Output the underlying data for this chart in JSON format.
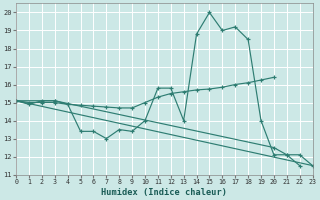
{
  "xlabel": "Humidex (Indice chaleur)",
  "bg_color": "#cce8e6",
  "grid_color": "#b8d8d6",
  "line_color": "#2e7d72",
  "xlim": [
    0,
    23
  ],
  "ylim": [
    11,
    20.5
  ],
  "yticks": [
    11,
    12,
    13,
    14,
    15,
    16,
    17,
    18,
    19,
    20
  ],
  "xticks": [
    0,
    1,
    2,
    3,
    4,
    5,
    6,
    7,
    8,
    9,
    10,
    11,
    12,
    13,
    14,
    15,
    16,
    17,
    18,
    19,
    20,
    21,
    22,
    23
  ],
  "series": [
    {
      "x": [
        0,
        1,
        2,
        3,
        4,
        5,
        6,
        7,
        8,
        9,
        10,
        11,
        12,
        13,
        14,
        15,
        16,
        17,
        18,
        19,
        20,
        21,
        22
      ],
      "y": [
        15.1,
        14.9,
        15.1,
        15.1,
        14.9,
        13.4,
        13.4,
        13.0,
        13.5,
        13.4,
        14.0,
        15.8,
        15.8,
        14.0,
        18.8,
        20.0,
        19.0,
        19.2,
        18.5,
        14.0,
        12.1,
        12.1,
        11.5
      ],
      "marker": true
    },
    {
      "x": [
        0,
        1,
        2,
        3,
        4,
        5,
        6,
        7,
        8,
        9,
        10,
        11,
        12,
        13,
        14,
        15,
        16,
        17,
        18,
        19,
        20
      ],
      "y": [
        15.1,
        15.0,
        15.0,
        15.0,
        14.9,
        14.85,
        14.8,
        14.75,
        14.7,
        14.7,
        15.0,
        15.3,
        15.5,
        15.6,
        15.7,
        15.75,
        15.85,
        16.0,
        16.1,
        16.25,
        16.4
      ],
      "marker": true
    },
    {
      "x": [
        0,
        3,
        20,
        21,
        22,
        23
      ],
      "y": [
        15.1,
        15.1,
        12.5,
        12.1,
        12.1,
        11.5
      ],
      "marker": true
    },
    {
      "x": [
        0,
        23
      ],
      "y": [
        15.1,
        11.5
      ],
      "marker": false
    }
  ]
}
